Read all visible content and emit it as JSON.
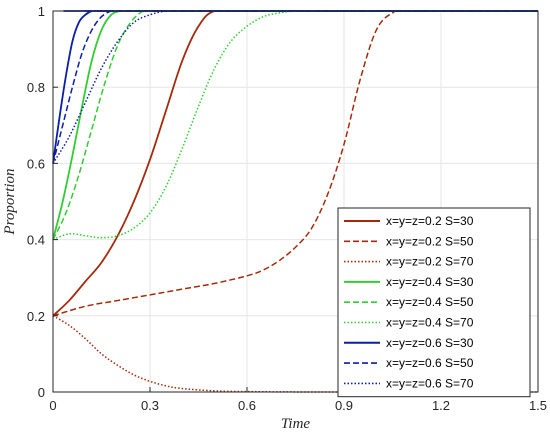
{
  "chart_data": {
    "type": "line",
    "xlabel": "Time",
    "ylabel": "Proportion",
    "xlim": [
      0,
      1.5
    ],
    "ylim": [
      0,
      1
    ],
    "xticks": [
      "0",
      "0.3",
      "0.6",
      "0.9",
      "1.2",
      "1.5"
    ],
    "yticks": [
      "0",
      "0.2",
      "0.4",
      "0.6",
      "0.8",
      "1"
    ],
    "grid": true,
    "legend_position": "bottom-right",
    "series": [
      {
        "name": "x=y=z=0.2 S=30",
        "color": "#a52a0a",
        "dash": "solid",
        "x": [
          0,
          0.05,
          0.1,
          0.15,
          0.2,
          0.25,
          0.3,
          0.35,
          0.4,
          0.45,
          0.5,
          0.6,
          1.5
        ],
        "y": [
          0.2,
          0.24,
          0.29,
          0.34,
          0.41,
          0.5,
          0.61,
          0.74,
          0.87,
          0.96,
          1.0,
          1.0,
          1.0
        ]
      },
      {
        "name": "x=y=z=0.2 S=50",
        "color": "#a52a0a",
        "dash": "dashed",
        "x": [
          0,
          0.1,
          0.2,
          0.3,
          0.4,
          0.5,
          0.6,
          0.65,
          0.7,
          0.75,
          0.8,
          0.85,
          0.9,
          0.95,
          1.0,
          1.05,
          1.1,
          1.5
        ],
        "y": [
          0.2,
          0.225,
          0.24,
          0.255,
          0.27,
          0.285,
          0.305,
          0.32,
          0.345,
          0.38,
          0.43,
          0.52,
          0.65,
          0.82,
          0.95,
          0.995,
          1.0,
          1.0
        ]
      },
      {
        "name": "x=y=z=0.2 S=70",
        "color": "#a52a0a",
        "dash": "dotted",
        "x": [
          0,
          0.05,
          0.1,
          0.15,
          0.2,
          0.25,
          0.3,
          0.35,
          0.4,
          0.5,
          0.6,
          0.8,
          1.0,
          1.5
        ],
        "y": [
          0.2,
          0.175,
          0.14,
          0.1,
          0.07,
          0.045,
          0.028,
          0.016,
          0.009,
          0.003,
          0.001,
          0,
          0,
          0
        ]
      },
      {
        "name": "x=y=z=0.4 S=30",
        "color": "#33cc33",
        "dash": "solid",
        "x": [
          0,
          0.03,
          0.06,
          0.09,
          0.12,
          0.15,
          0.18,
          0.21,
          0.24,
          1.5
        ],
        "y": [
          0.4,
          0.5,
          0.62,
          0.75,
          0.87,
          0.95,
          0.99,
          1.0,
          1.0,
          1.0
        ]
      },
      {
        "name": "x=y=z=0.4 S=50",
        "color": "#33cc33",
        "dash": "dashed",
        "x": [
          0,
          0.04,
          0.08,
          0.12,
          0.16,
          0.2,
          0.24,
          0.28,
          0.32,
          1.5
        ],
        "y": [
          0.4,
          0.47,
          0.57,
          0.69,
          0.81,
          0.91,
          0.97,
          1.0,
          1.0,
          1.0
        ]
      },
      {
        "name": "x=y=z=0.4 S=70",
        "color": "#33cc33",
        "dash": "dotted",
        "x": [
          0,
          0.05,
          0.1,
          0.15,
          0.2,
          0.25,
          0.3,
          0.35,
          0.4,
          0.45,
          0.5,
          0.55,
          0.6,
          0.65,
          0.7,
          0.75,
          0.8,
          1.5
        ],
        "y": [
          0.4,
          0.415,
          0.41,
          0.405,
          0.41,
          0.43,
          0.47,
          0.54,
          0.64,
          0.75,
          0.85,
          0.92,
          0.96,
          0.985,
          0.995,
          1.0,
          1.0,
          1.0
        ]
      },
      {
        "name": "x=y=z=0.6 S=30",
        "color": "#0a1ea8",
        "dash": "solid",
        "x": [
          0,
          0.02,
          0.04,
          0.06,
          0.08,
          0.1,
          0.12,
          0.14,
          1.5
        ],
        "y": [
          0.6,
          0.72,
          0.83,
          0.92,
          0.97,
          0.99,
          1.0,
          1.0,
          1.0
        ]
      },
      {
        "name": "x=y=z=0.6 S=50",
        "color": "#0a1ea8",
        "dash": "dashed",
        "x": [
          0,
          0.03,
          0.06,
          0.09,
          0.12,
          0.15,
          0.18,
          0.2,
          1.5
        ],
        "y": [
          0.6,
          0.7,
          0.8,
          0.89,
          0.95,
          0.985,
          1.0,
          1.0,
          1.0
        ]
      },
      {
        "name": "x=y=z=0.6 S=70",
        "color": "#0a1ea8",
        "dash": "dotted",
        "x": [
          0,
          0.05,
          0.1,
          0.15,
          0.2,
          0.25,
          0.3,
          0.35,
          0.4,
          1.5
        ],
        "y": [
          0.6,
          0.67,
          0.76,
          0.85,
          0.92,
          0.97,
          0.99,
          1.0,
          1.0,
          1.0
        ]
      }
    ]
  }
}
